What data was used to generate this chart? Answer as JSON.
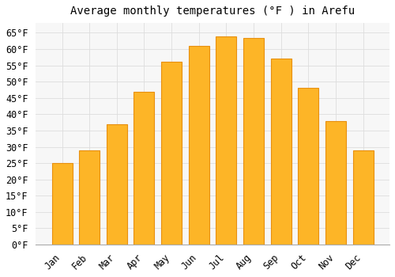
{
  "title": "Average monthly temperatures (°F ) in Arefu",
  "months": [
    "Jan",
    "Feb",
    "Mar",
    "Apr",
    "May",
    "Jun",
    "Jul",
    "Aug",
    "Sep",
    "Oct",
    "Nov",
    "Dec"
  ],
  "values": [
    25,
    29,
    37,
    47,
    56,
    61,
    64,
    63.5,
    57,
    48,
    38,
    29
  ],
  "bar_color": "#FDB527",
  "bar_edge_color": "#E89010",
  "background_color": "#ffffff",
  "plot_bg_color": "#f7f7f7",
  "grid_color": "#dddddd",
  "ylim": [
    0,
    68
  ],
  "yticks": [
    0,
    5,
    10,
    15,
    20,
    25,
    30,
    35,
    40,
    45,
    50,
    55,
    60,
    65
  ],
  "title_fontsize": 10,
  "tick_fontsize": 8.5,
  "font_family": "monospace"
}
